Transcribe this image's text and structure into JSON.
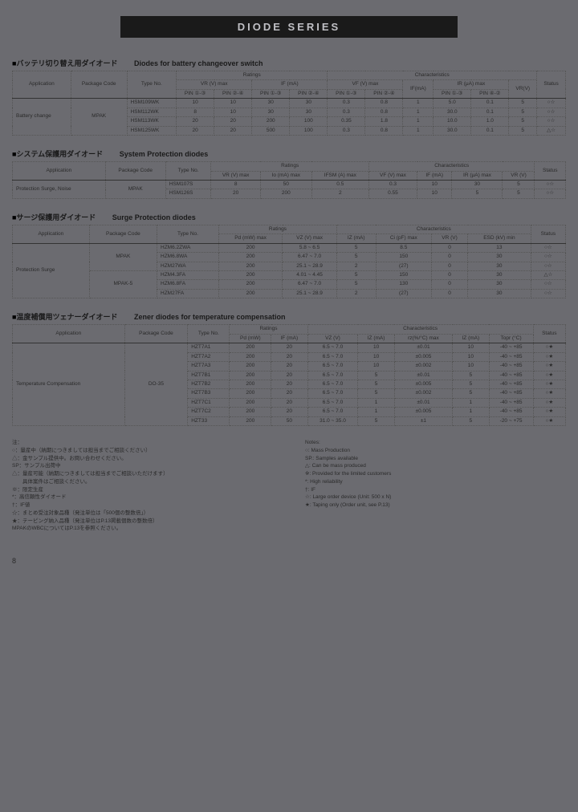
{
  "page": {
    "title": "DIODE   SERIES",
    "number": "8"
  },
  "section1": {
    "jp": "バッテリ切り替え用ダイオード",
    "en": "Diodes for battery changeover switch",
    "group_ratings": "Ratings",
    "group_char": "Characteristics",
    "h_app": "Application",
    "h_pkg": "Package Code",
    "h_type": "Type No.",
    "h_vr": "VR (V) max",
    "h_if": "IF (mA)",
    "h_vf": "VF (V) max",
    "h_ir": "IR (μA) max",
    "h_vrv": "VR(V)",
    "h_status": "Status",
    "sub_pin11": "PIN ①-③",
    "sub_pin22": "PIN ②-④",
    "sub_pin13": "PIN ①-③",
    "sub_pin24": "PIN ②-④",
    "sub_pinvf1": "PIN ①-③",
    "sub_pinvf2": "PIN ②-④",
    "sub_ifma": "IF(mA)",
    "sub_pinir1": "PIN ①-③",
    "sub_pinir2": "PIN ④-②",
    "app_label": "Battery change",
    "pkg_label": "MPAK",
    "rows": [
      {
        "type": "HSM109WK",
        "c": [
          "10",
          "10",
          "30",
          "30",
          "0.3",
          "0.8",
          "1",
          "5.0",
          "0.1",
          "5",
          "○☆"
        ]
      },
      {
        "type": "HSM112WK",
        "c": [
          "8",
          "10",
          "30",
          "30",
          "0.3",
          "0.8",
          "1",
          "30.0",
          "0.1",
          "5",
          "○☆"
        ]
      },
      {
        "type": "HSM113WK",
        "c": [
          "20",
          "20",
          "200",
          "100",
          "0.35",
          "1.8",
          "1",
          "10.0",
          "1.0",
          "5",
          "○☆"
        ]
      },
      {
        "type": "HSM125WK",
        "c": [
          "20",
          "20",
          "500",
          "100",
          "0.3",
          "0.8",
          "1",
          "30.0",
          "0.1",
          "5",
          "△☆"
        ]
      }
    ]
  },
  "section2": {
    "jp": "システム保護用ダイオード",
    "en": "System Protection diodes",
    "group_ratings": "Ratings",
    "group_char": "Characteristics",
    "h_app": "Application",
    "h_pkg": "Package Code",
    "h_type": "Type No.",
    "h_vr": "VR (V) max",
    "h_io": "Io (mA) max",
    "h_ifsm": "IFSM (A) max",
    "h_vf": "VF (V) max",
    "h_if": "IF (mA)",
    "h_ir": "IR (μA) max",
    "h_vrv": "VR (V)",
    "h_status": "Status",
    "app_label": "Protection Surge, Noise",
    "pkg_label": "MPAK",
    "rows": [
      {
        "type": "HSM107S",
        "c": [
          "8",
          "50",
          "0.5",
          "0.3",
          "10",
          "30",
          "5",
          "○☆"
        ]
      },
      {
        "type": "HSM126S",
        "c": [
          "20",
          "200",
          "2",
          "0.55",
          "10",
          "5",
          "5",
          "○☆"
        ]
      }
    ]
  },
  "section3": {
    "jp": "サージ保護用ダイオード",
    "en": "Surge Protection diodes",
    "group_ratings": "Ratings",
    "group_char": "Characteristics",
    "h_app": "Application",
    "h_pkg": "Package Code",
    "h_type": "Type No.",
    "h_pd": "Pd (mW) max",
    "h_vz": "VZ (V) max",
    "h_iz": "IZ (mA)",
    "h_cpf": "Ci (pF) max",
    "h_vrv": "VR (V)",
    "h_esd": "ESD (kV) min",
    "h_status": "Status",
    "app_label": "Protection Surge",
    "pkg1": "MPAK",
    "pkg2": "MPAK-5",
    "rows": [
      {
        "type": "HZM6.2ZWA",
        "c": [
          "200",
          "5.8 ~ 6.5",
          "5",
          "8.5",
          "0",
          "13",
          "○☆"
        ]
      },
      {
        "type": "HZM6.8WA",
        "c": [
          "200",
          "6.47 ~ 7.0",
          "5",
          "150",
          "0",
          "30",
          "○☆"
        ]
      },
      {
        "type": "HZM27WA",
        "c": [
          "200",
          "25.1 ~ 28.9",
          "2",
          "(27)",
          "0",
          "30",
          "○☆"
        ]
      },
      {
        "type": "HZM4.3FA",
        "c": [
          "200",
          "4.01 ~ 4.45",
          "5",
          "150",
          "0",
          "30",
          "△☆"
        ]
      },
      {
        "type": "HZM6.8FA",
        "c": [
          "200",
          "6.47 ~ 7.0",
          "5",
          "130",
          "0",
          "30",
          "○☆"
        ]
      },
      {
        "type": "HZM27FA",
        "c": [
          "200",
          "25.1 ~ 28.9",
          "2",
          "(27)",
          "0",
          "30",
          "○☆"
        ]
      }
    ]
  },
  "section4": {
    "jp": "温度補償用ツェナーダイオード",
    "en": "Zener diodes for temperature compensation",
    "group_ratings": "Ratings",
    "group_char": "Characteristics",
    "h_app": "Application",
    "h_pkg": "Package Code",
    "h_type": "Type No.",
    "h_pd": "Pd (mW)",
    "h_if": "IF (mA)",
    "h_vz": "VZ (V)",
    "h_iz": "IZ (mA)",
    "h_rz": "rz(%/°C) max",
    "h_iz2": "IZ (mA)",
    "h_topr": "Topr (°C)",
    "h_status": "Status",
    "app_label": "Temperature Compensation",
    "pkg_label": "DO-35",
    "rows": [
      {
        "type": "HZT7A1",
        "c": [
          "200",
          "20",
          "6.5 ~ 7.0",
          "10",
          "±0.01",
          "10",
          "-40 ~ +85",
          "○★"
        ]
      },
      {
        "type": "HZT7A2",
        "c": [
          "200",
          "20",
          "6.5 ~ 7.0",
          "10",
          "±0.005",
          "10",
          "-40 ~ +85",
          "○★"
        ]
      },
      {
        "type": "HZT7A3",
        "c": [
          "200",
          "20",
          "6.5 ~ 7.0",
          "10",
          "±0.002",
          "10",
          "-40 ~ +85",
          "○★"
        ]
      },
      {
        "type": "HZT7B1",
        "c": [
          "200",
          "20",
          "6.5 ~ 7.0",
          "5",
          "±0.01",
          "5",
          "-40 ~ +85",
          "○★"
        ]
      },
      {
        "type": "HZT7B2",
        "c": [
          "200",
          "20",
          "6.5 ~ 7.0",
          "5",
          "±0.005",
          "5",
          "-40 ~ +85",
          "○★"
        ]
      },
      {
        "type": "HZT7B3",
        "c": [
          "200",
          "20",
          "6.5 ~ 7.0",
          "5",
          "±0.002",
          "5",
          "-40 ~ +85",
          "○★"
        ]
      },
      {
        "type": "HZT7C1",
        "c": [
          "200",
          "20",
          "6.5 ~ 7.0",
          "1",
          "±0.01",
          "1",
          "-40 ~ +85",
          "○★"
        ]
      },
      {
        "type": "HZT7C2",
        "c": [
          "200",
          "20",
          "6.5 ~ 7.0",
          "1",
          "±0.005",
          "1",
          "-40 ~ +85",
          "○★"
        ]
      },
      {
        "type": "HZT33",
        "c": [
          "200",
          "50",
          "31.0 ~ 35.0",
          "5",
          "±1",
          "5",
          "-20 ~ +75",
          "○★"
        ]
      }
    ]
  },
  "notes": {
    "jp": {
      "title": "注：",
      "lines": [
        "○：量産中（納期につきましては担当までご相談ください）",
        "△：金サンプル提供中。お問い合わせください。",
        "SP：サンプル出荷中",
        "△：量産可能（納期につきましては担当までご相談いただけます）",
        "　　具体案件はご相談ください。",
        "※：限定生産",
        "*：高信頼性ダイオード",
        "†：IF値",
        "☆：まとめ受注対象品種（発注単位は「500個の整数倍」）",
        "★：テーピング納入品種（発注単位はP.13掲載個数の整数倍）",
        "MPAKのWBCについてはP.13を参照ください。"
      ]
    },
    "en": {
      "title": "Notes:",
      "lines": [
        "○: Mass Production",
        "SP.: Samples available",
        "△: Can be mass produced",
        "※: Provided for the limited customers",
        "*: High reliability",
        "†: IF",
        "☆: Large order device (Unit: 500 x N)",
        "★: Taping only (Order unit, see P.13)"
      ]
    }
  }
}
